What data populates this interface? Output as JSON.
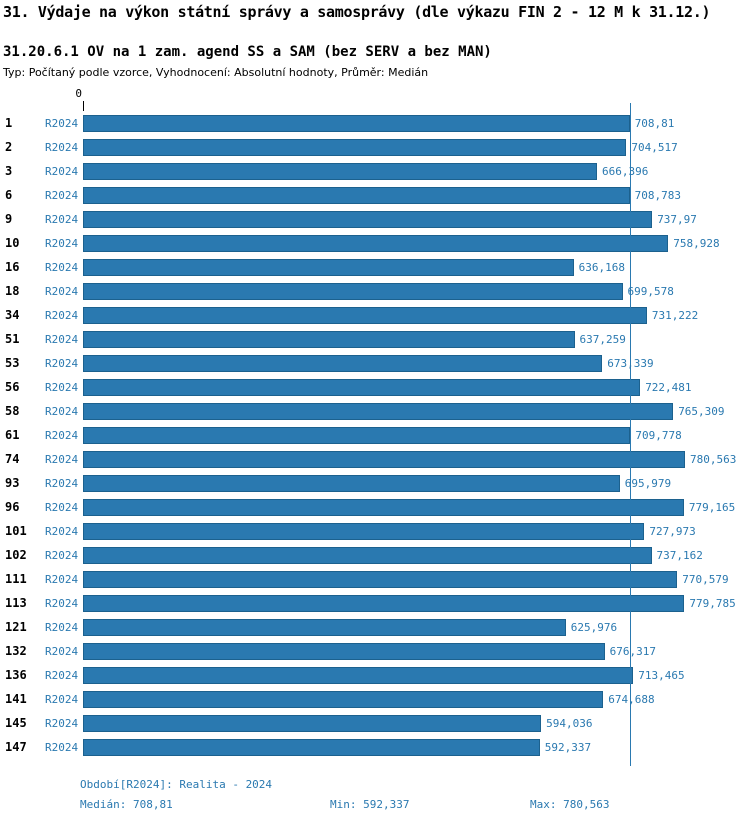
{
  "header": {
    "title": "31. Výdaje na výkon státní správy a samosprávy (dle výkazu FIN 2 - 12 M k 31.12.)",
    "subtitle": "31.20.6.1 OV na 1 zam. agend SS a SAM (bez SERV a bez MAN)",
    "meta": "Typ: Počítaný podle vzorce, Vyhodnocení: Absolutní hodnoty, Průměr: Medián"
  },
  "chart_data": {
    "type": "bar",
    "orientation": "horizontal",
    "title": "31.20.6.1 OV na 1 zam. agend SS a SAM (bez SERV a bez MAN)",
    "xlabel": "",
    "ylabel": "",
    "axis_zero_label": "0",
    "xlim": [
      0,
      780.563
    ],
    "series_label": "R2024",
    "categories": [
      "1",
      "2",
      "3",
      "6",
      "9",
      "10",
      "16",
      "18",
      "34",
      "51",
      "53",
      "56",
      "58",
      "61",
      "74",
      "93",
      "96",
      "101",
      "102",
      "111",
      "113",
      "121",
      "132",
      "136",
      "141",
      "145",
      "147"
    ],
    "values": [
      708.81,
      704.517,
      666.396,
      708.783,
      737.97,
      758.928,
      636.168,
      699.578,
      731.222,
      637.259,
      673.339,
      722.481,
      765.309,
      709.778,
      780.563,
      695.979,
      779.165,
      727.973,
      737.162,
      770.579,
      779.785,
      625.976,
      676.317,
      713.465,
      674.688,
      594.036,
      592.337
    ],
    "value_labels": [
      "708,81",
      "704,517",
      "666,396",
      "708,783",
      "737,97",
      "758,928",
      "636,168",
      "699,578",
      "731,222",
      "637,259",
      "673,339",
      "722,481",
      "765,309",
      "709,778",
      "780,563",
      "695,979",
      "779,165",
      "727,973",
      "737,162",
      "770,579",
      "779,785",
      "625,976",
      "676,317",
      "713,465",
      "674,688",
      "594,036",
      "592,337"
    ],
    "median": 708.81,
    "median_label": "708,81",
    "min": 592.337,
    "max": 780.563,
    "bar_color": "#2a79b0",
    "label_color": "#2a79b0",
    "legend_position": "none",
    "grid": false
  },
  "footer": {
    "period": "Období[R2024]: Realita - 2024",
    "median": "Medián: 708,81",
    "min": "Min: 592,337",
    "max": "Max: 780,563"
  }
}
